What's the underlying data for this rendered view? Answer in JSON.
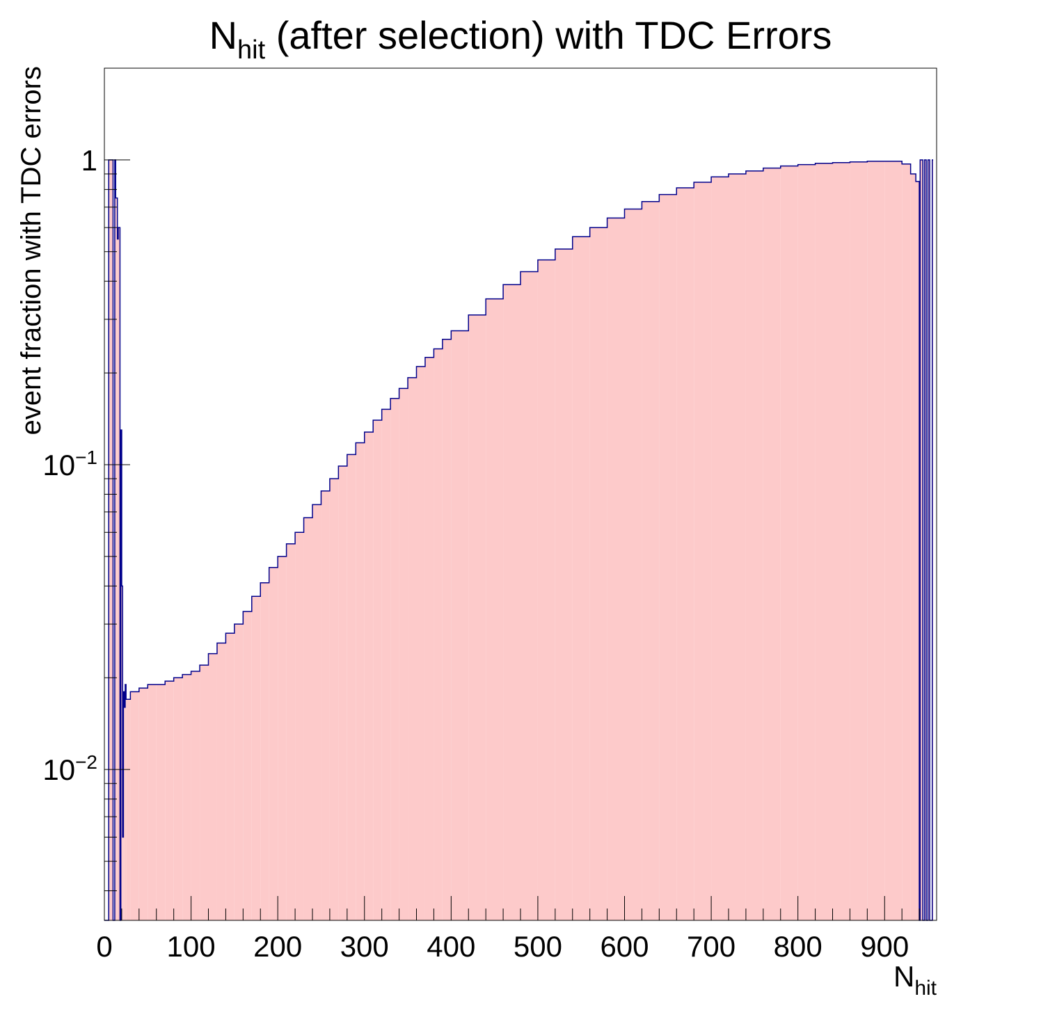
{
  "chart_data": {
    "type": "step-histogram",
    "title": {
      "main": "N",
      "sub": "hit",
      "rest": " (after selection) with TDC Errors"
    },
    "xlabel": {
      "main": "N",
      "sub": "hit"
    },
    "ylabel": "event fraction with TDC errors",
    "x_range": [
      0,
      960
    ],
    "y_range": [
      0.0032,
      2.0
    ],
    "y_scale": "log",
    "x_ticks": [
      "0",
      "100",
      "200",
      "300",
      "400",
      "500",
      "600",
      "700",
      "800",
      "900"
    ],
    "x_tick_values": [
      0,
      100,
      200,
      300,
      400,
      500,
      600,
      700,
      800,
      900
    ],
    "y_ticks": [
      {
        "value": 1.0,
        "label": "1"
      },
      {
        "value": 0.1,
        "base": "10",
        "exp": "−1"
      },
      {
        "value": 0.01,
        "base": "10",
        "exp": "−2"
      }
    ],
    "bin_width": 1,
    "series": [
      {
        "name": "fraction",
        "line_color": "#00008b",
        "fill_color": "#fdcaca",
        "note": "sampled envelope of the noisy per-bin step histogram",
        "x": [
          0,
          3,
          5,
          8,
          10,
          12,
          13,
          15,
          16,
          18,
          19,
          20,
          21,
          22,
          23,
          24,
          25,
          30,
          40,
          50,
          60,
          70,
          80,
          90,
          100,
          110,
          120,
          130,
          140,
          150,
          160,
          170,
          180,
          190,
          200,
          210,
          220,
          230,
          240,
          250,
          260,
          270,
          280,
          290,
          300,
          310,
          320,
          330,
          340,
          350,
          360,
          370,
          380,
          390,
          400,
          420,
          440,
          460,
          480,
          500,
          520,
          540,
          560,
          580,
          600,
          620,
          640,
          660,
          680,
          700,
          720,
          740,
          760,
          780,
          800,
          820,
          840,
          860,
          880,
          900,
          920,
          930,
          936,
          940,
          941,
          944,
          946,
          948,
          950,
          952,
          955
        ],
        "values": [
          0.0032,
          0.0032,
          1.0,
          1.0,
          0.0032,
          1.0,
          0.75,
          0.55,
          0.6,
          0.0032,
          0.13,
          0.04,
          0.006,
          0.018,
          0.016,
          0.019,
          0.017,
          0.018,
          0.0185,
          0.019,
          0.019,
          0.0195,
          0.02,
          0.0205,
          0.021,
          0.022,
          0.024,
          0.026,
          0.028,
          0.03,
          0.033,
          0.037,
          0.041,
          0.046,
          0.05,
          0.055,
          0.06,
          0.067,
          0.074,
          0.082,
          0.09,
          0.099,
          0.108,
          0.118,
          0.128,
          0.14,
          0.152,
          0.165,
          0.178,
          0.193,
          0.21,
          0.225,
          0.24,
          0.258,
          0.275,
          0.31,
          0.35,
          0.39,
          0.43,
          0.47,
          0.51,
          0.56,
          0.6,
          0.645,
          0.69,
          0.73,
          0.77,
          0.81,
          0.845,
          0.88,
          0.9,
          0.92,
          0.94,
          0.955,
          0.965,
          0.975,
          0.98,
          0.985,
          0.99,
          0.99,
          0.97,
          0.9,
          0.85,
          0.0032,
          1.0,
          0.0032,
          1.0,
          0.0032,
          1.0,
          0.0032,
          1.0
        ]
      }
    ]
  }
}
